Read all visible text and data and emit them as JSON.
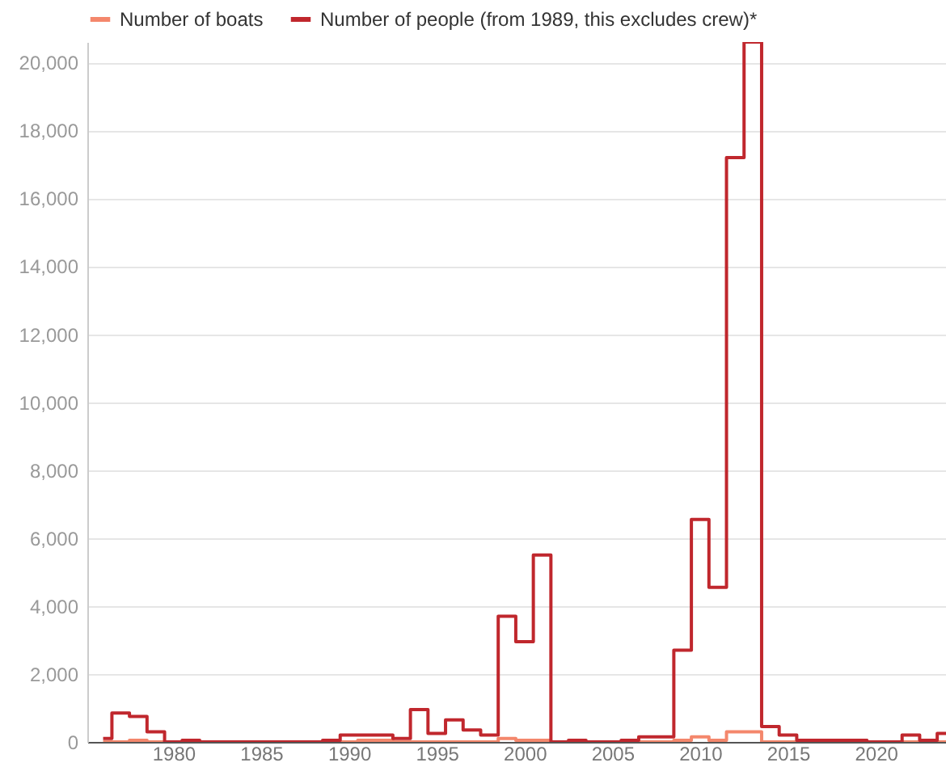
{
  "chart_data": {
    "type": "step",
    "x": [
      1976,
      1977,
      1978,
      1979,
      1980,
      1981,
      1982,
      1983,
      1984,
      1985,
      1986,
      1987,
      1988,
      1989,
      1990,
      1991,
      1992,
      1993,
      1994,
      1995,
      1996,
      1997,
      1998,
      1999,
      2000,
      2001,
      2002,
      2003,
      2004,
      2005,
      2006,
      2007,
      2008,
      2009,
      2010,
      2011,
      2012,
      2013,
      2014,
      2015,
      2016,
      2017,
      2018,
      2019,
      2020,
      2021,
      2022,
      2023,
      2024
    ],
    "series": [
      {
        "name": "Number of boats",
        "color": "#f4876c",
        "values": [
          0,
          0,
          50,
          0,
          0,
          0,
          0,
          0,
          0,
          0,
          0,
          0,
          0,
          0,
          0,
          50,
          50,
          0,
          0,
          0,
          0,
          0,
          0,
          100,
          50,
          50,
          0,
          0,
          0,
          0,
          0,
          0,
          0,
          50,
          150,
          50,
          300,
          300,
          0,
          0,
          0,
          0,
          0,
          0,
          0,
          0,
          0,
          0,
          0
        ]
      },
      {
        "name": "Number of people (from 1989, this excludes crew)*",
        "color": "#c0272d",
        "values": [
          100,
          850,
          750,
          300,
          0,
          50,
          0,
          0,
          0,
          0,
          0,
          0,
          0,
          50,
          200,
          200,
          200,
          100,
          950,
          250,
          650,
          350,
          200,
          3700,
          2950,
          5500,
          0,
          50,
          0,
          0,
          50,
          150,
          150,
          2700,
          6550,
          4550,
          17200,
          20600,
          450,
          200,
          50,
          50,
          50,
          50,
          0,
          0,
          200,
          50,
          250
        ]
      }
    ],
    "xlim": [
      1975.1,
      2024
    ],
    "xticks": [
      1980,
      1985,
      1990,
      1995,
      2000,
      2005,
      2010,
      2015,
      2020
    ],
    "yticks": [
      0,
      {
        "value": 2000,
        "label": "2,000"
      },
      {
        "value": 4000,
        "label": "4,000"
      },
      {
        "value": 6000,
        "label": "6,000"
      },
      {
        "value": 8000,
        "label": "8,000"
      },
      {
        "value": 10000,
        "label": "10,000"
      },
      {
        "value": 12000,
        "label": "12,000"
      },
      {
        "value": 14000,
        "label": "14,000"
      },
      {
        "value": 16000,
        "label": "16,000"
      },
      {
        "value": 18000,
        "label": "18,000"
      },
      {
        "value": 20000,
        "label": "20,000"
      }
    ],
    "ylim": [
      0,
      20600
    ],
    "grid": "y",
    "legend": "top left"
  }
}
